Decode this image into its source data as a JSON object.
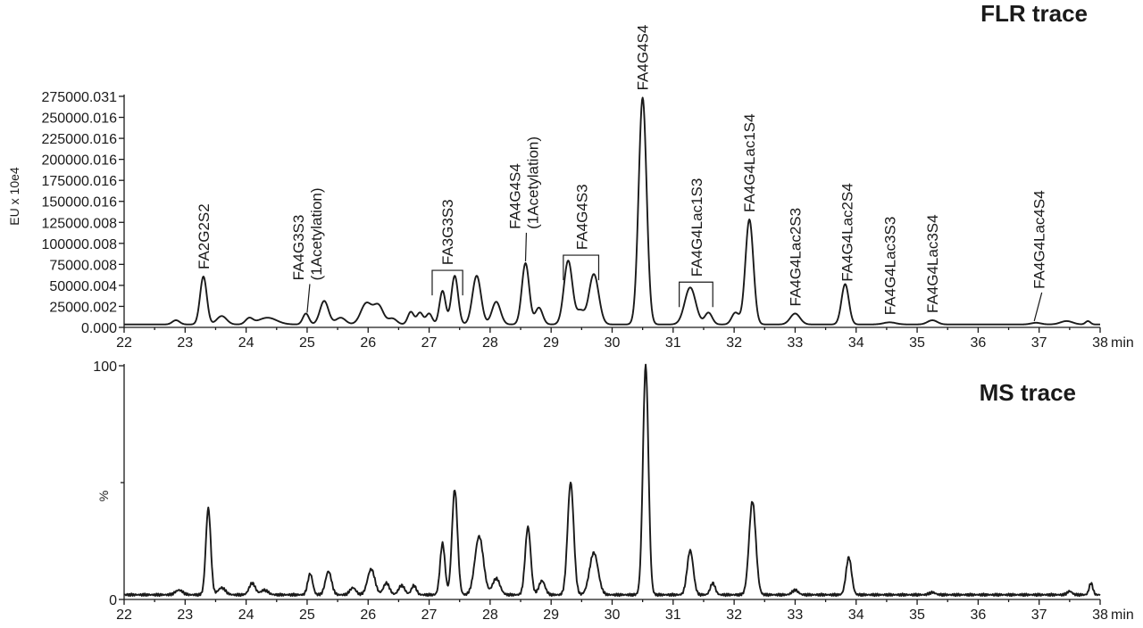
{
  "chart_data": [
    {
      "type": "line",
      "title": "FLR trace",
      "ylabel": "EU x 10e4",
      "xlabel": "min",
      "xlim": [
        22,
        38
      ],
      "ylim": [
        0,
        275000.031
      ],
      "x_ticks": [
        "22",
        "23",
        "24",
        "25",
        "26",
        "27",
        "28",
        "29",
        "30",
        "31",
        "32",
        "33",
        "34",
        "35",
        "36",
        "37",
        "38"
      ],
      "y_ticks": [
        "0.000",
        "25000.002",
        "50000.004",
        "75000.008",
        "100000.008",
        "125000.008",
        "150000.016",
        "175000.016",
        "200000.016",
        "225000.016",
        "250000.016",
        "275000.031"
      ],
      "grid": false,
      "baseline": 3500,
      "series": [
        {
          "peaks": [
            {
              "x": 22.85,
              "h": 5000,
              "w": 0.06
            },
            {
              "x": 23.3,
              "h": 57000,
              "w": 0.055
            },
            {
              "x": 23.6,
              "h": 10000,
              "w": 0.08
            },
            {
              "x": 24.05,
              "h": 7000,
              "w": 0.06
            },
            {
              "x": 24.35,
              "h": 8000,
              "w": 0.15
            },
            {
              "x": 24.98,
              "h": 13000,
              "w": 0.05
            },
            {
              "x": 25.28,
              "h": 28000,
              "w": 0.07
            },
            {
              "x": 25.55,
              "h": 8000,
              "w": 0.08
            },
            {
              "x": 25.97,
              "h": 25000,
              "w": 0.09
            },
            {
              "x": 26.17,
              "h": 22000,
              "w": 0.08
            },
            {
              "x": 26.4,
              "h": 7000,
              "w": 0.07
            },
            {
              "x": 26.7,
              "h": 15000,
              "w": 0.05
            },
            {
              "x": 26.85,
              "h": 14000,
              "w": 0.05
            },
            {
              "x": 27.0,
              "h": 13000,
              "w": 0.05
            },
            {
              "x": 27.22,
              "h": 40000,
              "w": 0.05
            },
            {
              "x": 27.42,
              "h": 58000,
              "w": 0.055
            },
            {
              "x": 27.78,
              "h": 58000,
              "w": 0.07
            },
            {
              "x": 28.1,
              "h": 27000,
              "w": 0.07
            },
            {
              "x": 28.58,
              "h": 73000,
              "w": 0.06
            },
            {
              "x": 28.8,
              "h": 20000,
              "w": 0.06
            },
            {
              "x": 29.28,
              "h": 76000,
              "w": 0.07
            },
            {
              "x": 29.48,
              "h": 15000,
              "w": 0.06
            },
            {
              "x": 29.7,
              "h": 60000,
              "w": 0.08
            },
            {
              "x": 30.5,
              "h": 270000,
              "w": 0.065
            },
            {
              "x": 31.28,
              "h": 44000,
              "w": 0.09
            },
            {
              "x": 31.58,
              "h": 14000,
              "w": 0.06
            },
            {
              "x": 32.02,
              "h": 14000,
              "w": 0.06
            },
            {
              "x": 32.25,
              "h": 125000,
              "w": 0.065
            },
            {
              "x": 33.0,
              "h": 13000,
              "w": 0.08
            },
            {
              "x": 33.82,
              "h": 48000,
              "w": 0.06
            },
            {
              "x": 34.55,
              "h": 2500,
              "w": 0.1
            },
            {
              "x": 35.25,
              "h": 5000,
              "w": 0.08
            },
            {
              "x": 36.95,
              "h": 2000,
              "w": 0.08
            },
            {
              "x": 37.45,
              "h": 4000,
              "w": 0.1
            },
            {
              "x": 37.8,
              "h": 4000,
              "w": 0.04
            }
          ]
        }
      ],
      "annotations": [
        {
          "lines": [
            "FA2G2S2"
          ],
          "x": 23.3
        },
        {
          "lines": [
            "FA4G3S3",
            "(1Acetylation)"
          ],
          "x": 25.0,
          "leader_to": 25.0
        },
        {
          "lines": [
            "FA3G3S3"
          ],
          "x": 27.3,
          "bracket": [
            27.05,
            27.55
          ]
        },
        {
          "lines": [
            "FA4G4S4",
            "(1Acetylation)"
          ],
          "x": 28.55,
          "leader_to": 28.58
        },
        {
          "lines": [
            "FA4G4S3"
          ],
          "x": 29.5,
          "bracket": [
            29.2,
            29.78
          ]
        },
        {
          "lines": [
            "FA4G4S4"
          ],
          "x": 30.5
        },
        {
          "lines": [
            "FA4G4Lac1S3"
          ],
          "x": 31.38,
          "bracket": [
            31.1,
            31.65
          ]
        },
        {
          "lines": [
            "FA4G4Lac1S4"
          ],
          "x": 32.25
        },
        {
          "lines": [
            "FA4G4Lac2S3"
          ],
          "x": 33.0
        },
        {
          "lines": [
            "FA4G4Lac2S4"
          ],
          "x": 33.85
        },
        {
          "lines": [
            "FA4G4Lac3S3"
          ],
          "x": 34.55
        },
        {
          "lines": [
            "FA4G4Lac3S4"
          ],
          "x": 35.25
        },
        {
          "lines": [
            "FA4G4Lac4S4"
          ],
          "x": 37.0,
          "leader_to": 36.92
        }
      ]
    },
    {
      "type": "line",
      "title": "MS trace",
      "ylabel": "%",
      "xlabel": "min",
      "xlim": [
        22,
        38
      ],
      "ylim": [
        0,
        100
      ],
      "x_ticks": [
        "22",
        "23",
        "24",
        "25",
        "26",
        "27",
        "28",
        "29",
        "30",
        "31",
        "32",
        "33",
        "34",
        "35",
        "36",
        "37",
        "38"
      ],
      "y_ticks": [
        "0",
        "100"
      ],
      "grid": false,
      "baseline": 2,
      "series": [
        {
          "peaks": [
            {
              "x": 22.9,
              "h": 2,
              "w": 0.06
            },
            {
              "x": 23.38,
              "h": 37,
              "w": 0.04
            },
            {
              "x": 23.6,
              "h": 3,
              "w": 0.06
            },
            {
              "x": 24.1,
              "h": 5,
              "w": 0.05
            },
            {
              "x": 24.3,
              "h": 2,
              "w": 0.06
            },
            {
              "x": 25.05,
              "h": 9,
              "w": 0.04
            },
            {
              "x": 25.35,
              "h": 10,
              "w": 0.05
            },
            {
              "x": 25.75,
              "h": 3,
              "w": 0.05
            },
            {
              "x": 26.05,
              "h": 11,
              "w": 0.06
            },
            {
              "x": 26.3,
              "h": 5,
              "w": 0.05
            },
            {
              "x": 26.55,
              "h": 4,
              "w": 0.05
            },
            {
              "x": 26.75,
              "h": 4,
              "w": 0.04
            },
            {
              "x": 27.22,
              "h": 22,
              "w": 0.04
            },
            {
              "x": 27.42,
              "h": 45,
              "w": 0.045
            },
            {
              "x": 27.82,
              "h": 25,
              "w": 0.07
            },
            {
              "x": 28.1,
              "h": 7,
              "w": 0.06
            },
            {
              "x": 28.62,
              "h": 29,
              "w": 0.045
            },
            {
              "x": 28.85,
              "h": 6,
              "w": 0.05
            },
            {
              "x": 29.32,
              "h": 48,
              "w": 0.05
            },
            {
              "x": 29.7,
              "h": 18,
              "w": 0.07
            },
            {
              "x": 30.55,
              "h": 98,
              "w": 0.045
            },
            {
              "x": 31.28,
              "h": 19,
              "w": 0.05
            },
            {
              "x": 31.65,
              "h": 5,
              "w": 0.04
            },
            {
              "x": 32.3,
              "h": 40,
              "w": 0.055
            },
            {
              "x": 33.0,
              "h": 2,
              "w": 0.05
            },
            {
              "x": 33.88,
              "h": 16,
              "w": 0.045
            },
            {
              "x": 35.25,
              "h": 1,
              "w": 0.05
            },
            {
              "x": 37.5,
              "h": 1.5,
              "w": 0.04
            },
            {
              "x": 37.85,
              "h": 5,
              "w": 0.03
            }
          ]
        }
      ]
    }
  ]
}
